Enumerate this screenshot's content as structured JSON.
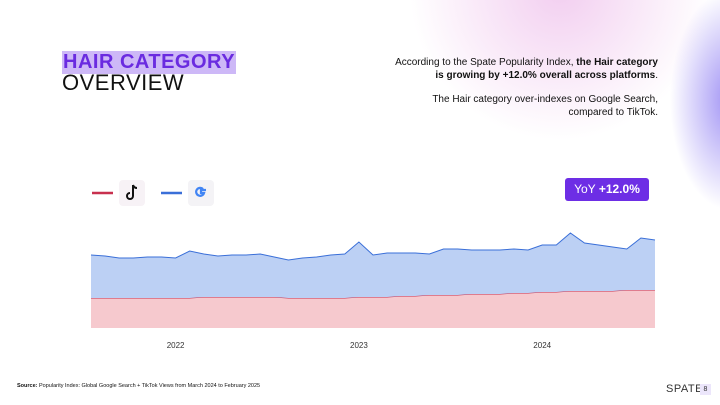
{
  "header": {
    "title_highlight": "HAIR CATEGORY",
    "title": "OVERVIEW"
  },
  "summary": {
    "p1": [
      "According to the Spate Popularity Index, ",
      "the Hair category is growing by +12.0% overall across platforms",
      "."
    ],
    "p2": "The Hair category over-indexes on Google Search, compared to TikTok."
  },
  "badge": {
    "label": "YoY",
    "value": "+12.0%"
  },
  "chart_data": {
    "type": "stacked-area",
    "categories": [
      null,
      null,
      null,
      null,
      null,
      null,
      "2022",
      null,
      null,
      null,
      null,
      null,
      null,
      null,
      null,
      null,
      null,
      null,
      null,
      "2023",
      null,
      null,
      null,
      null,
      null,
      null,
      null,
      null,
      null,
      null,
      null,
      null,
      "2024",
      null,
      null,
      null,
      null,
      null,
      null,
      null,
      null
    ],
    "ylim": [
      0,
      100
    ],
    "series": [
      {
        "color": "#c8304e",
        "fill": "#f6c9ce",
        "values": [
          30,
          30,
          30,
          30,
          30,
          30,
          30,
          30,
          31,
          31,
          31,
          31,
          31,
          31,
          30,
          30,
          30,
          30,
          30,
          31,
          31,
          31,
          32,
          32,
          33,
          33,
          33,
          34,
          34,
          34,
          35,
          35,
          36,
          36,
          37,
          37,
          37,
          37,
          38,
          38,
          38
        ]
      },
      {
        "color": "#3a6fd8",
        "fill": "#bcd0f4",
        "values": [
          43,
          42,
          40,
          40,
          41,
          41,
          40,
          47,
          43,
          41,
          42,
          42,
          43,
          40,
          38,
          40,
          41,
          43,
          44,
          55,
          42,
          44,
          43,
          43,
          41,
          46,
          46,
          44,
          44,
          44,
          44,
          43,
          47,
          47,
          58,
          48,
          46,
          44,
          41,
          52,
          50
        ]
      }
    ]
  },
  "footer": {
    "source_label": "Source:",
    "source": " Popularity Index: Global Google Search + TikTok Views from March 2024 to February 2025",
    "brand": "SPATE",
    "page": "8"
  }
}
